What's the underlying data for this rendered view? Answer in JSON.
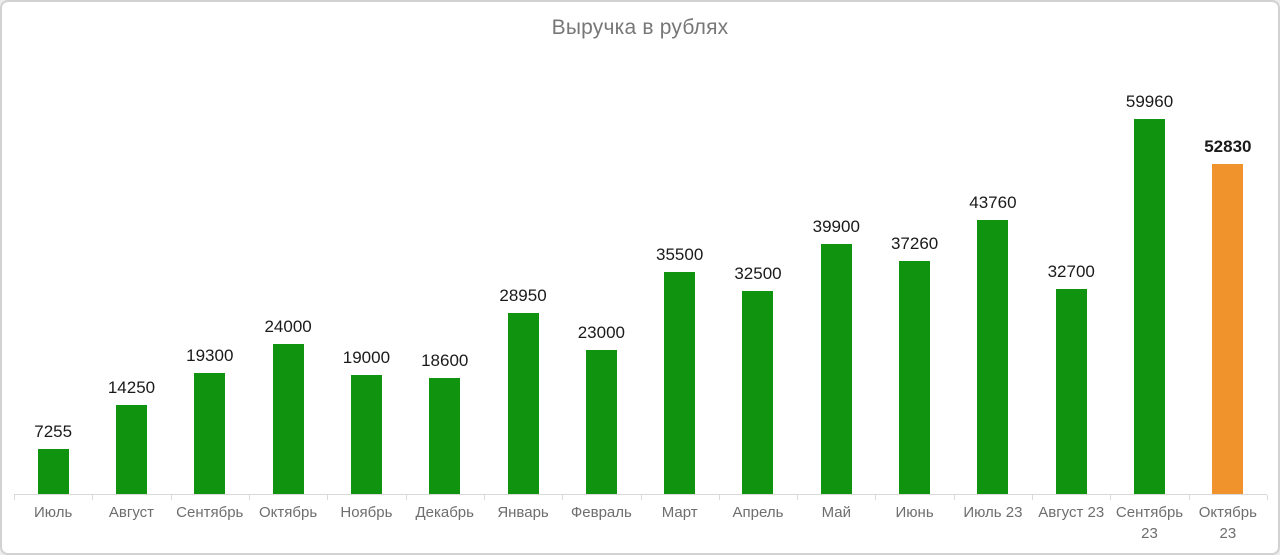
{
  "chart_data": {
    "type": "bar",
    "title": "Выручка в рублях",
    "categories": [
      "Июль",
      "Август",
      "Сентябрь",
      "Октябрь",
      "Ноябрь",
      "Декабрь",
      "Январь",
      "Февраль",
      "Март",
      "Апрель",
      "Май",
      "Июнь",
      "Июль 23",
      "Август 23",
      "Сентябрь 23",
      "Октябрь 23"
    ],
    "xtick_lines": [
      [
        "Июль"
      ],
      [
        "Август"
      ],
      [
        "Сентябрь"
      ],
      [
        "Октябрь"
      ],
      [
        "Ноябрь"
      ],
      [
        "Декабрь"
      ],
      [
        "Январь"
      ],
      [
        "Февраль"
      ],
      [
        "Март"
      ],
      [
        "Апрель"
      ],
      [
        "Май"
      ],
      [
        "Июнь"
      ],
      [
        "Июль 23"
      ],
      [
        "Август 23"
      ],
      [
        "Сентябрь",
        "23"
      ],
      [
        "Октябрь",
        "23"
      ]
    ],
    "values": [
      7255,
      14250,
      19300,
      24000,
      19000,
      18600,
      28950,
      23000,
      35500,
      32500,
      39900,
      37260,
      43760,
      32700,
      59960,
      52830
    ],
    "value_labels": [
      "7255",
      "14250",
      "19300",
      "24000",
      "19000",
      "18600",
      "28950",
      "23000",
      "35500",
      "32500",
      "39900",
      "37260",
      "43760",
      "32700",
      "59960",
      "52830"
    ],
    "highlight_index": 15,
    "ylim": [
      0,
      62000
    ],
    "grid": false,
    "legend": null,
    "xlabel": "",
    "ylabel": "",
    "colors": {
      "bar": "#109410",
      "highlight_bar": "#F0932D",
      "value_label": "#1a1a1a",
      "title": "#777777",
      "axis_label": "#6e6e6e",
      "axis_line": "#d9d9d9"
    }
  }
}
